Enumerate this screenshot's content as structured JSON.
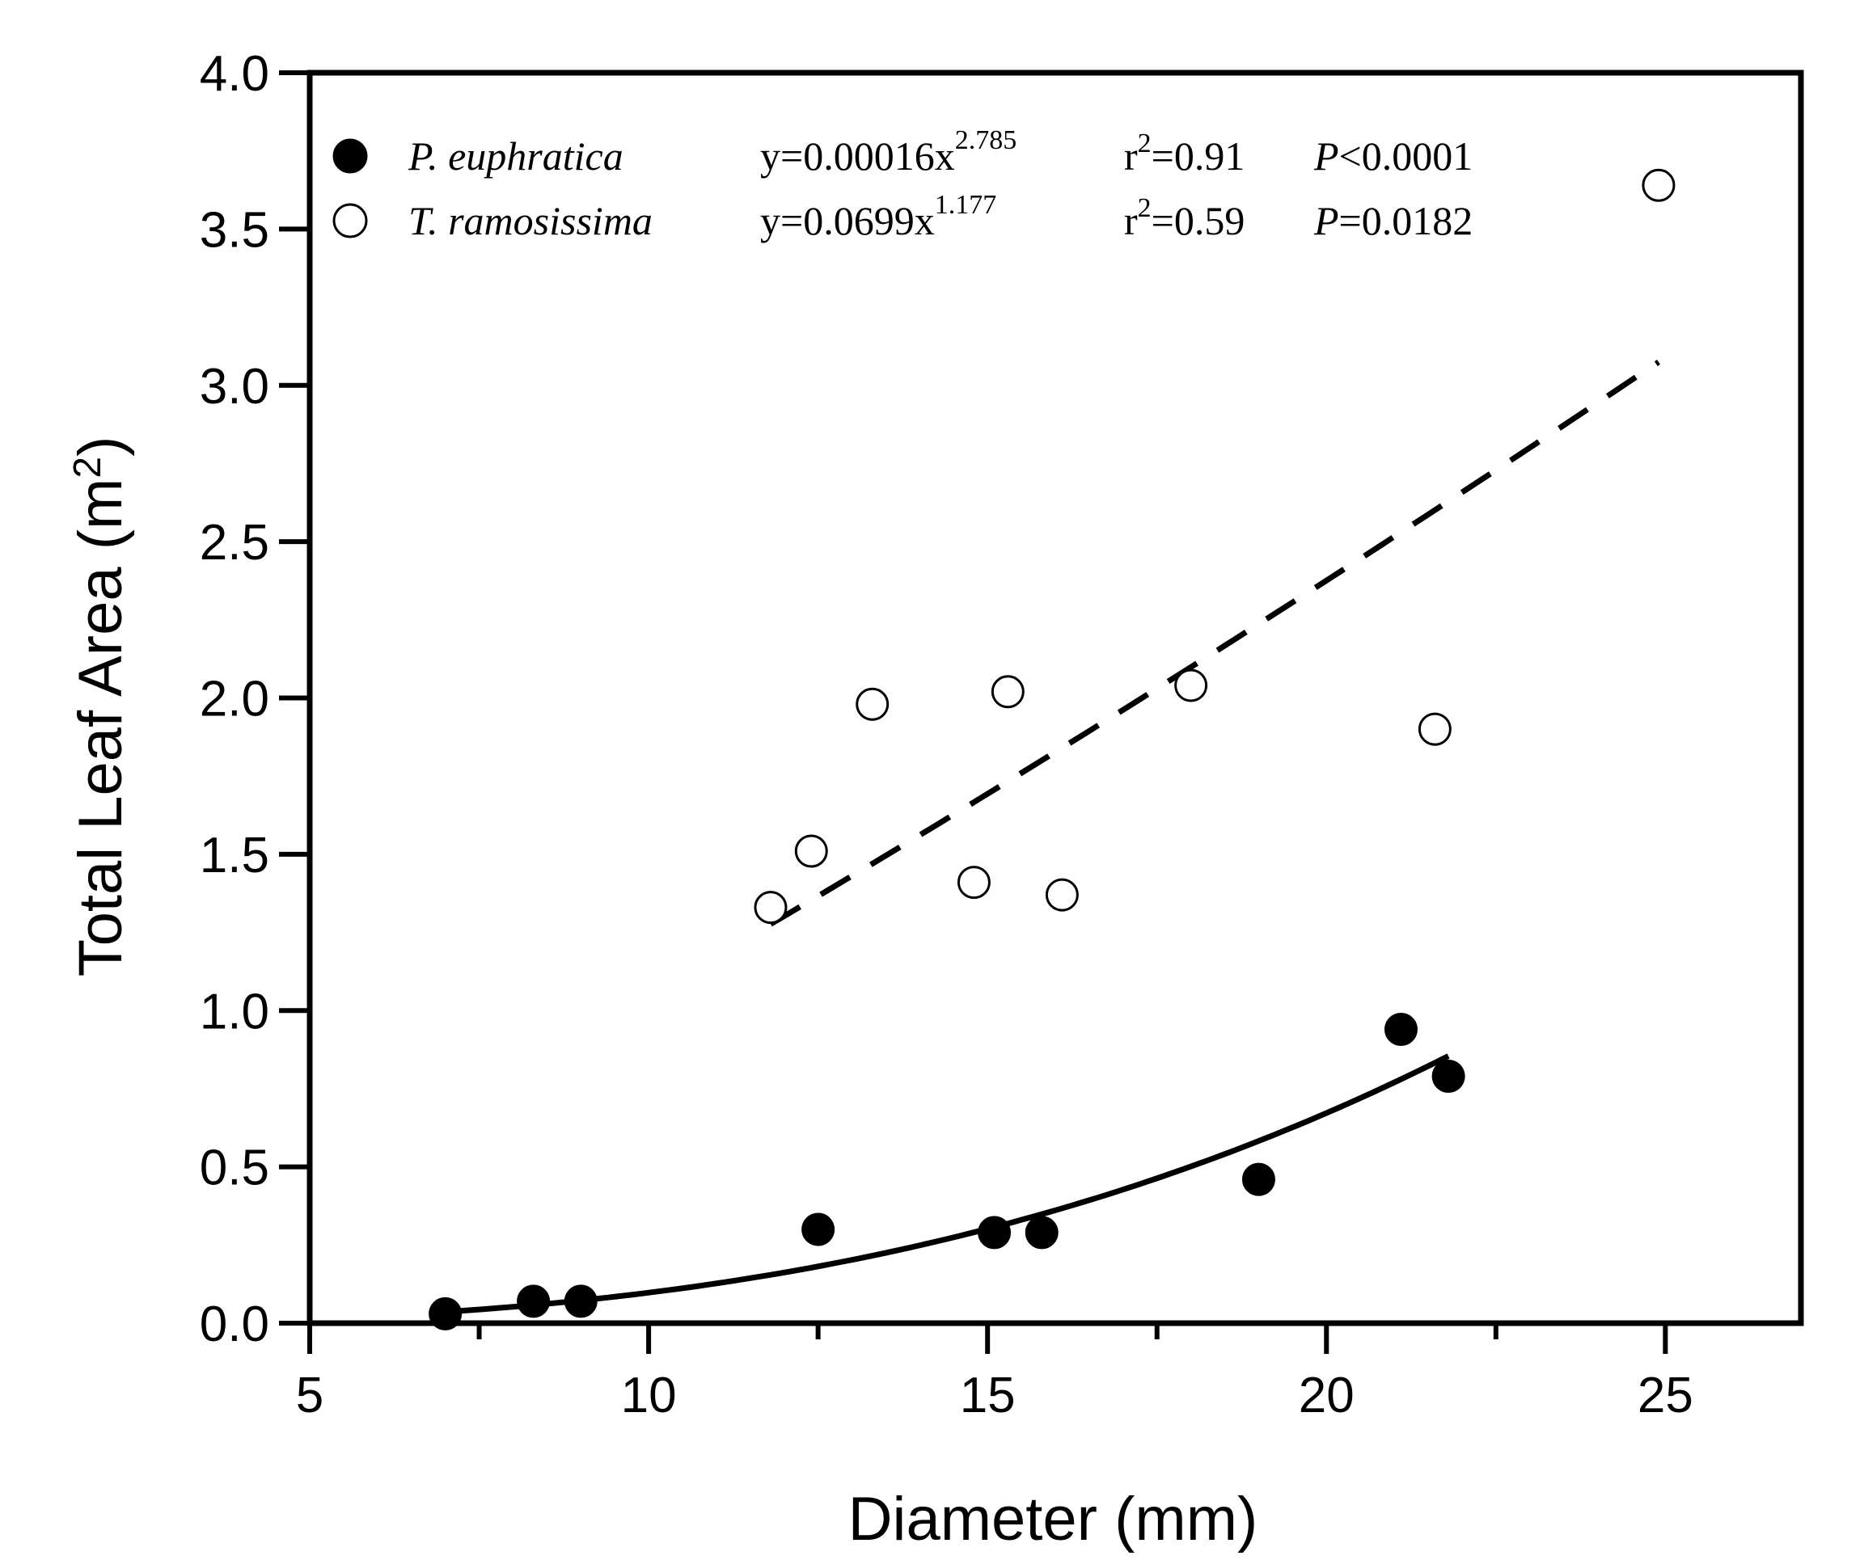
{
  "chart_data": {
    "type": "scatter",
    "title": "",
    "xlabel": "Diameter (mm)",
    "ylabel": {
      "main": "Total Leaf Area (m",
      "sup": "2",
      "end": ")"
    },
    "xlim": [
      5,
      27
    ],
    "ylim": [
      0,
      4.0
    ],
    "x_ticks": [
      5,
      10,
      15,
      20,
      25
    ],
    "x_tick_labels": [
      "5",
      "10",
      "15",
      "20",
      "25"
    ],
    "x_minor_ticks": [
      7.5,
      12.5,
      17.5,
      22.5
    ],
    "y_ticks": [
      0,
      0.5,
      1.0,
      1.5,
      2.0,
      2.5,
      3.0,
      3.5,
      4.0
    ],
    "y_tick_labels": [
      "0.0",
      "0.5",
      "1.0",
      "1.5",
      "2.0",
      "2.5",
      "3.0",
      "3.5",
      "4.0"
    ],
    "grid": false,
    "legend_position": "top-left",
    "series": [
      {
        "name": "P. euphratica",
        "marker": "filled-circle",
        "color": "#000000",
        "points": [
          {
            "x": 7.0,
            "y": 0.03
          },
          {
            "x": 8.3,
            "y": 0.07
          },
          {
            "x": 9.0,
            "y": 0.07
          },
          {
            "x": 12.5,
            "y": 0.3
          },
          {
            "x": 15.1,
            "y": 0.29
          },
          {
            "x": 15.8,
            "y": 0.29
          },
          {
            "x": 19.0,
            "y": 0.46
          },
          {
            "x": 21.1,
            "y": 0.94
          },
          {
            "x": 21.8,
            "y": 0.79
          }
        ],
        "fit": {
          "type": "power",
          "a": 0.00016,
          "b": 2.785,
          "x_range": [
            7.0,
            21.8
          ],
          "line": "solid"
        },
        "equation": {
          "prefix": "y=0.00016x",
          "exponent": "2.785"
        },
        "r2": {
          "base": "r",
          "sup": "2",
          "value": "=0.91"
        },
        "p": {
          "label": "P",
          "value": "<0.0001"
        }
      },
      {
        "name": "T. ramosissima",
        "marker": "open-circle",
        "color": "#000000",
        "points": [
          {
            "x": 11.8,
            "y": 1.33
          },
          {
            "x": 12.4,
            "y": 1.51
          },
          {
            "x": 13.3,
            "y": 1.98
          },
          {
            "x": 14.8,
            "y": 1.41
          },
          {
            "x": 15.3,
            "y": 2.02
          },
          {
            "x": 16.1,
            "y": 1.37
          },
          {
            "x": 18.0,
            "y": 2.04
          },
          {
            "x": 21.6,
            "y": 1.9
          },
          {
            "x": 24.9,
            "y": 3.64
          }
        ],
        "fit": {
          "type": "power",
          "a": 0.0699,
          "b": 1.177,
          "x_range": [
            11.8,
            24.9
          ],
          "line": "dashed"
        },
        "equation": {
          "prefix": "y=0.0699x",
          "exponent": "1.177"
        },
        "r2": {
          "base": "r",
          "sup": "2",
          "value": "=0.59"
        },
        "p": {
          "label": "P",
          "value": "=0.0182"
        }
      }
    ]
  }
}
